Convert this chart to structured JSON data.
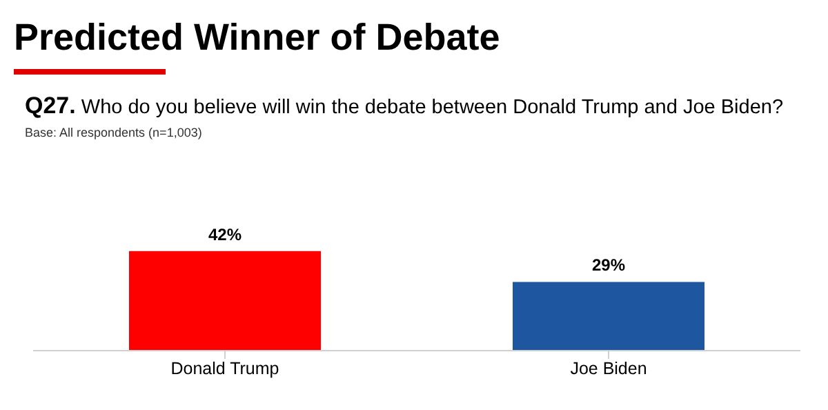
{
  "chart_data": {
    "type": "bar",
    "title": "Predicted Winner of Debate",
    "subtitle": "Q27. Who do you believe will win the debate between Donald Trump and Joe Biden?",
    "annotations": [
      "Base: All respondents (n=1,003)"
    ],
    "categories": [
      "Donald Trump",
      "Joe Biden"
    ],
    "values": [
      42,
      29
    ],
    "colors": [
      "#ff0000",
      "#1f56a0"
    ],
    "value_labels": [
      "42%",
      "29%"
    ],
    "grid": false,
    "legend": false
  }
}
